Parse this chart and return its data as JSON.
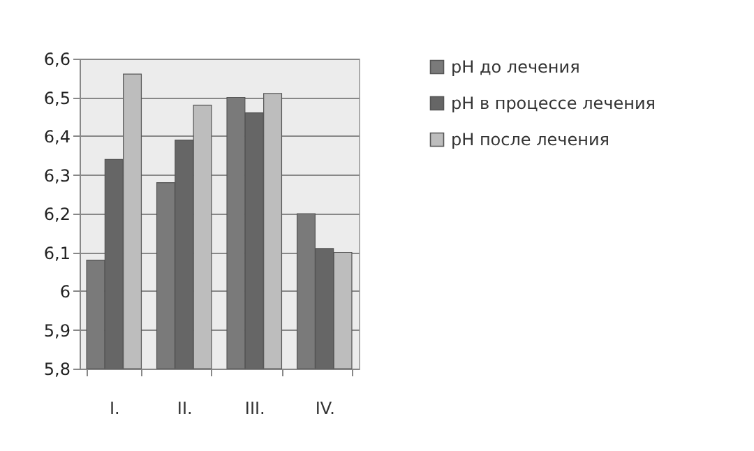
{
  "chart_data": {
    "type": "bar",
    "categories": [
      "I.",
      "II.",
      "III.",
      "IV."
    ],
    "series": [
      {
        "name": "pH до лечения",
        "color": "#7a7a7a",
        "values": [
          6.08,
          6.28,
          6.5,
          6.2
        ]
      },
      {
        "name": "pH в процессе лечения",
        "color": "#666666",
        "values": [
          6.34,
          6.39,
          6.46,
          6.11
        ]
      },
      {
        "name": "pH после лечения",
        "color": "#bdbdbd",
        "values": [
          6.56,
          6.48,
          6.51,
          6.1
        ]
      }
    ],
    "ylim": [
      5.8,
      6.6
    ],
    "yticks": [
      {
        "value": 5.8,
        "label": "5,8"
      },
      {
        "value": 5.9,
        "label": "5,9"
      },
      6,
      {
        "value": 6.1,
        "label": "6,1"
      },
      {
        "value": 6.2,
        "label": "6,2"
      },
      {
        "value": 6.3,
        "label": "6,3"
      },
      {
        "value": 6.4,
        "label": "6,4"
      },
      {
        "value": 6.5,
        "label": "6,5"
      },
      {
        "value": 6.6,
        "label": "6,6"
      }
    ],
    "grid": "y",
    "legend": "right"
  }
}
